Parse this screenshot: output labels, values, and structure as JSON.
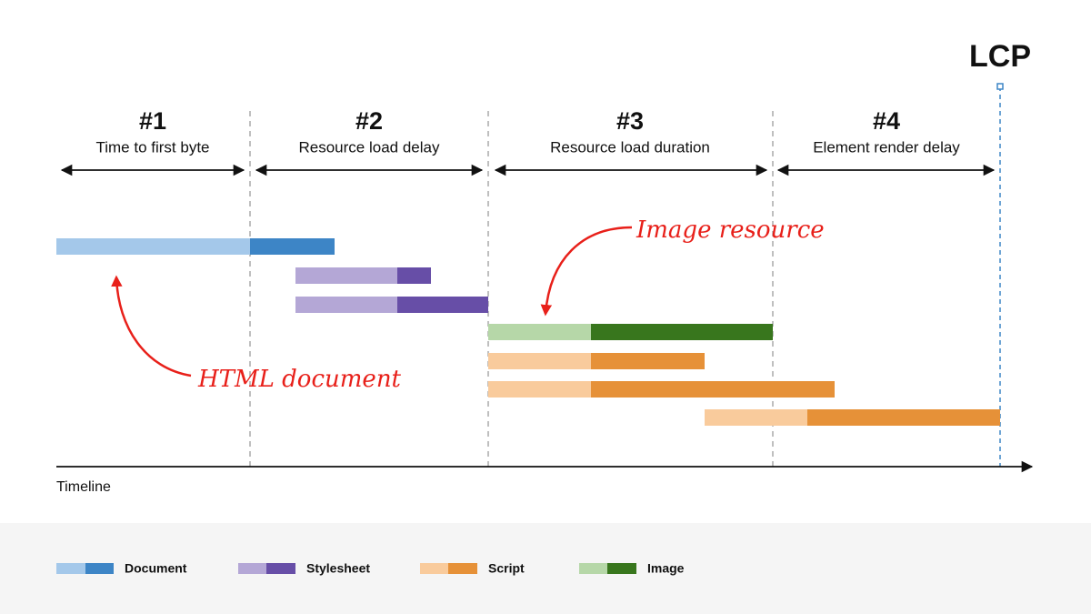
{
  "lcp_label": "LCP",
  "phases": [
    {
      "number": "#1",
      "label": "Time to first byte"
    },
    {
      "number": "#2",
      "label": "Resource load delay"
    },
    {
      "number": "#3",
      "label": "Resource load duration"
    },
    {
      "number": "#4",
      "label": "Element render delay"
    }
  ],
  "annotations": [
    "Image resource",
    "HTML document"
  ],
  "axis_label": "Timeline",
  "legend": [
    "Document",
    "Stylesheet",
    "Script",
    "Image"
  ]
}
